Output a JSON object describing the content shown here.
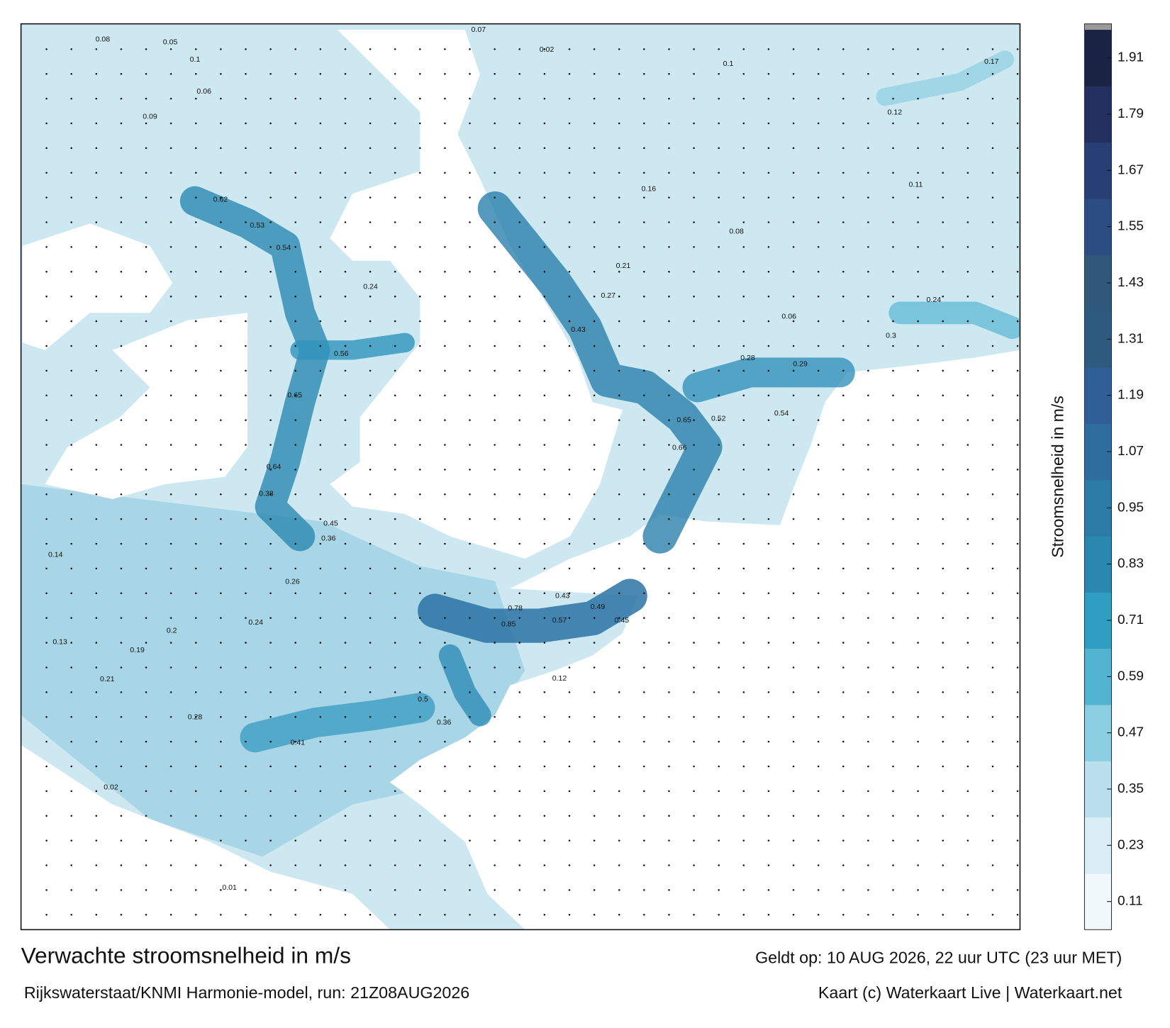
{
  "map": {
    "title": "Verwachte stroomsnelheid in m/s",
    "subtitle": "Rijkswaterstaat/KNMI Harmonie-model, run: 21Z08AUG2026",
    "valid": "Geldt op: 10 AUG 2026, 22 uur UTC (23 uur MET)",
    "credit": "Kaart (c) Waterkaart Live | Waterkaart.net",
    "colorbar": {
      "label": "Stroomsnelheid in m/s",
      "range": [
        0.05,
        1.97
      ],
      "ticks": [
        0.11,
        0.23,
        0.35,
        0.47,
        0.59,
        0.71,
        0.83,
        0.95,
        1.07,
        1.19,
        1.31,
        1.43,
        1.55,
        1.67,
        1.79,
        1.91
      ],
      "colors": [
        "#f1f8fb",
        "#d9eef5",
        "#b9e0ec",
        "#8ccee1",
        "#53b4d1",
        "#2f9ec2",
        "#2a88b0",
        "#2c7aa6",
        "#2f6d9f",
        "#305f97",
        "#2f5a80",
        "#2f587a",
        "#2c4d84",
        "#283f75",
        "#232f5f",
        "#1b2345"
      ]
    },
    "current_labels": [
      0.08,
      0.05,
      0.1,
      0.06,
      0.09,
      0.62,
      0.53,
      0.54,
      0.24,
      0.56,
      0.65,
      0.64,
      0.38,
      0.45,
      0.36,
      0.26,
      0.24,
      0.2,
      0.21,
      0.19,
      0.28,
      0.41,
      0.5,
      0.36,
      0.85,
      0.78,
      0.57,
      0.49,
      0.43,
      0.45,
      0.66,
      0.65,
      0.52,
      0.54,
      0.29,
      0.28,
      0.43,
      0.27,
      0.21,
      0.16,
      0.07,
      0.02,
      0.1,
      0.12,
      0.17,
      0.24,
      0.3,
      0.08,
      0.06,
      0.14,
      0.13,
      0.01,
      0.02,
      0.12,
      0.11
    ]
  }
}
